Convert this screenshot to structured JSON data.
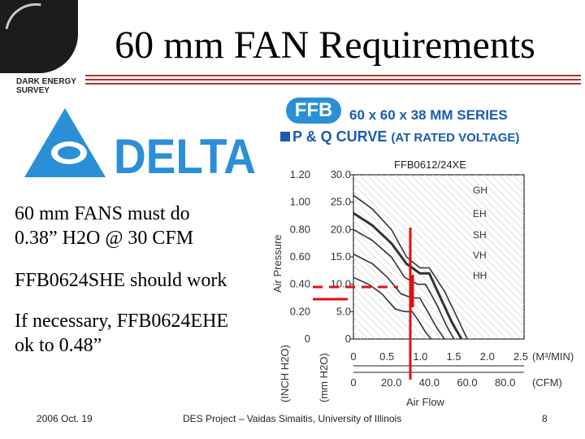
{
  "header": {
    "title": "60 mm FAN Requirements",
    "logo_des_lines": [
      "DARK ENERGY",
      "SURVEY"
    ],
    "delta_brand": "DELTA"
  },
  "body": {
    "requirement_line1": "60 mm FANS must do",
    "requirement_line2": "0.38” H2O @ 30 CFM",
    "model_ok": "FFB0624SHE should work",
    "fallback_line1": "If necessary,  FFB0624EHE",
    "fallback_line2": "ok to 0.48”"
  },
  "figure": {
    "badge": "FFB",
    "series_title": "60 x 60 x 38 MM SERIES",
    "curve_title": "P & Q CURVE",
    "curve_subtitle": "(AT RATED VOLTAGE)",
    "model": "FFB0612/24XE",
    "y_label_pressure": "Air Pressure",
    "x_label_flow": "Air Flow",
    "unit_inh2o": "(INCH H2O)",
    "unit_mmh2o": "(mm H2O)",
    "unit_m3min": "(M³/MIN)",
    "unit_cfm": "(CFM)",
    "curve_labels": [
      "GH",
      "EH",
      "SH",
      "VH",
      "HH"
    ]
  },
  "chart_data": {
    "type": "line",
    "title": "P & Q CURVE (AT RATED VOLTAGE)",
    "xlabel": "Air Flow",
    "ylabel": "Air Pressure",
    "y_ticks_inh2o": [
      "1.20",
      "1.00",
      "0.80",
      "0.60",
      "0.40",
      "0.20",
      "0"
    ],
    "y_ticks_mmh2o": [
      "30.0",
      "25.0",
      "20.0",
      "15.0",
      "10.0",
      "5.0",
      "0"
    ],
    "x_ticks_m3min": [
      "0",
      "0.5",
      "1.0",
      "1.5",
      "2.0",
      "2.5"
    ],
    "x_ticks_cfm": [
      "0",
      "20.0",
      "40.0",
      "60.0",
      "80.0"
    ],
    "xlim_cfm": [
      0,
      90
    ],
    "ylim_inh2o": [
      0,
      1.2
    ],
    "series": [
      {
        "name": "GH",
        "x": [
          0,
          10,
          20,
          28,
          35,
          40,
          48,
          55,
          60
        ],
        "y": [
          1.05,
          0.95,
          0.8,
          0.6,
          0.52,
          0.52,
          0.35,
          0.15,
          0
        ]
      },
      {
        "name": "EH",
        "x": [
          0,
          10,
          20,
          28,
          35,
          40,
          46,
          52,
          57
        ],
        "y": [
          0.92,
          0.83,
          0.7,
          0.55,
          0.48,
          0.48,
          0.3,
          0.12,
          0
        ]
      },
      {
        "name": "SH",
        "x": [
          0,
          10,
          20,
          27,
          34,
          38,
          44,
          49,
          53
        ],
        "y": [
          0.8,
          0.72,
          0.6,
          0.45,
          0.4,
          0.4,
          0.25,
          0.1,
          0
        ]
      },
      {
        "name": "VH",
        "x": [
          0,
          10,
          18,
          25,
          31,
          35,
          40,
          44,
          48
        ],
        "y": [
          0.62,
          0.55,
          0.45,
          0.33,
          0.3,
          0.3,
          0.18,
          0.08,
          0
        ]
      },
      {
        "name": "HH",
        "x": [
          0,
          8,
          15,
          22,
          27,
          31,
          35,
          38,
          41
        ],
        "y": [
          0.45,
          0.4,
          0.33,
          0.22,
          0.2,
          0.2,
          0.12,
          0.05,
          0
        ]
      }
    ],
    "requirement": {
      "cfm": 30,
      "pressure_inh2o": 0.38
    }
  },
  "footer": {
    "date": "2006 Oct. 19",
    "credit": "DES Project – Vaidas Simaitis,  University of Illinois",
    "page": "8"
  }
}
